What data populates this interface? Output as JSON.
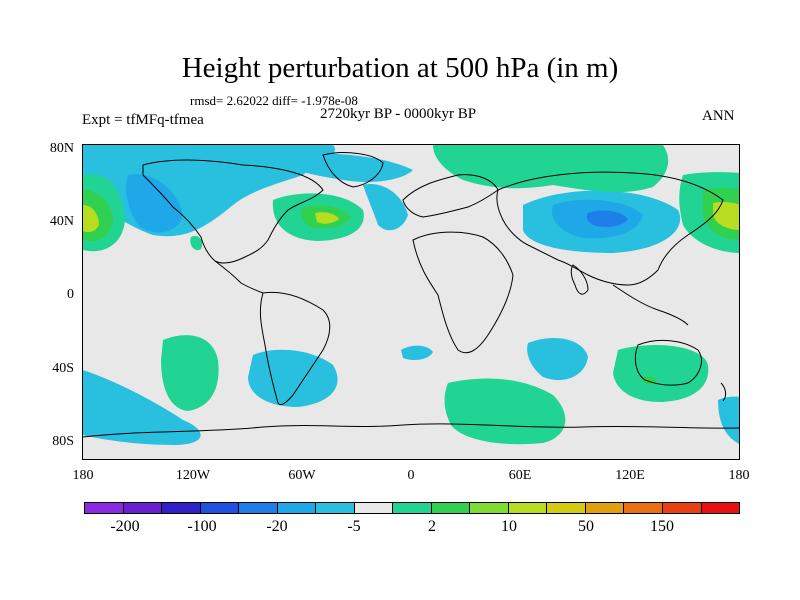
{
  "header": {
    "title": "Height perturbation at 500 hPa (in m)",
    "stats": "rmsd= 2.62022 diff= -1.978e-08",
    "period": "2720kyr BP - 0000kyr BP",
    "experiment": "Expt = tfMFq-tfmea",
    "season": "ANN"
  },
  "axes": {
    "lat_labels": [
      "80N",
      "40N",
      "0",
      "40S",
      "80S"
    ],
    "lon_labels": [
      "180",
      "120W",
      "60W",
      "0",
      "60E",
      "120E",
      "180"
    ]
  },
  "colorbar": {
    "colors": [
      "#8a2be2",
      "#6a1fd0",
      "#3020c8",
      "#2050e0",
      "#1e7fe8",
      "#1ea8e8",
      "#29c0e0",
      "#e8e8e8",
      "#22d494",
      "#30d050",
      "#80dc30",
      "#b8dc20",
      "#d4cc10",
      "#e0a010",
      "#e87010",
      "#e84010",
      "#e81010"
    ],
    "labels": [
      "-200",
      "-100",
      "-20",
      "-5",
      "2",
      "10",
      "50",
      "150"
    ]
  },
  "map": {
    "background_color": "#e8e8e8",
    "coast_color": "#000000"
  }
}
